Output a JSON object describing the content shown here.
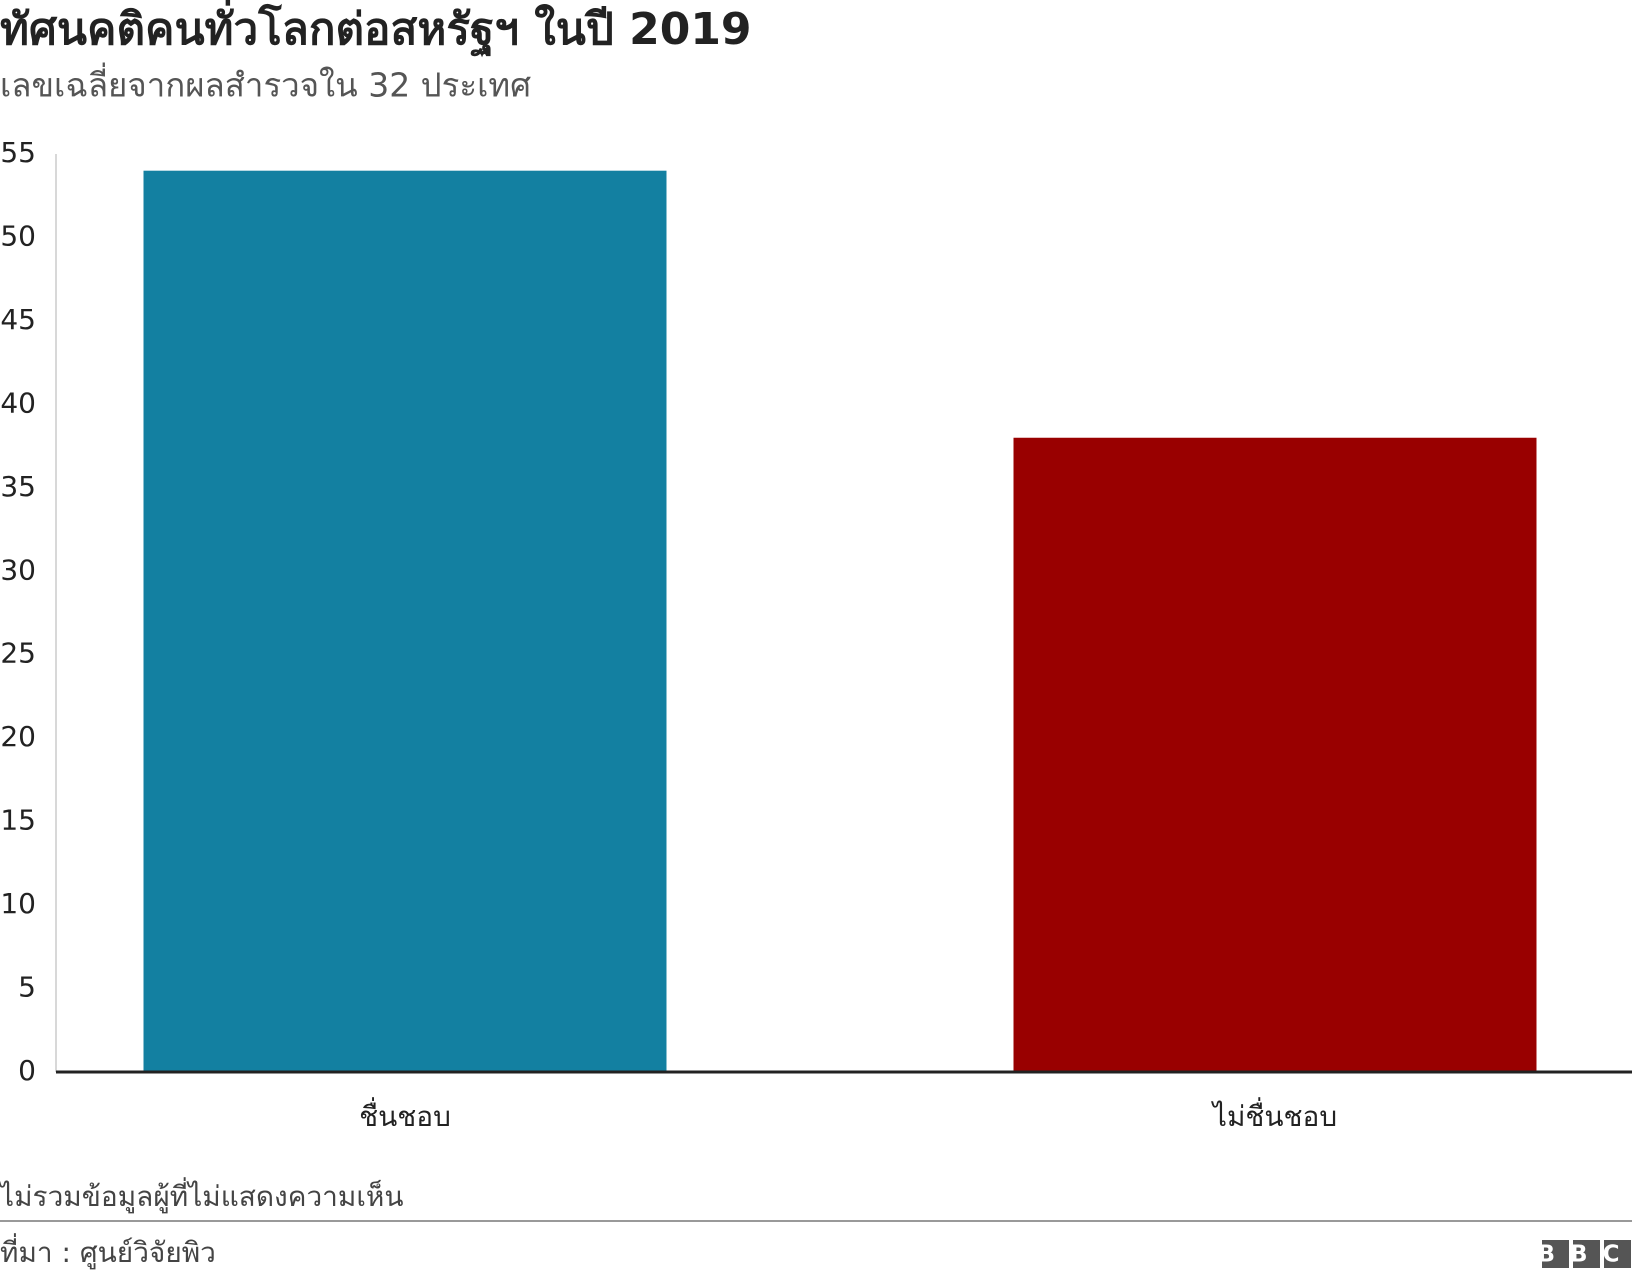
{
  "chart_data": {
    "type": "bar",
    "title": "ทัศนคติคนทั่วโลกต่อสหรัฐฯ ในปี 2019",
    "subtitle": "เลขเฉลี่ยจากผลสำรวจใน 32 ประเทศ",
    "categories": [
      "ชื่นชอบ",
      "ไม่ชื่นชอบ"
    ],
    "values": [
      54,
      38
    ],
    "colors": [
      "#1380a1",
      "#990000"
    ],
    "ylim": [
      0,
      55
    ],
    "yticks": [
      0,
      5,
      10,
      15,
      20,
      25,
      30,
      35,
      40,
      45,
      50,
      55
    ],
    "grid": false,
    "note": "ไม่รวมข้อมูลผู้ที่ไม่แสดงความเห็น",
    "source": "ที่มา : ศูนย์วิจัยพิว",
    "logo": "BBC"
  }
}
